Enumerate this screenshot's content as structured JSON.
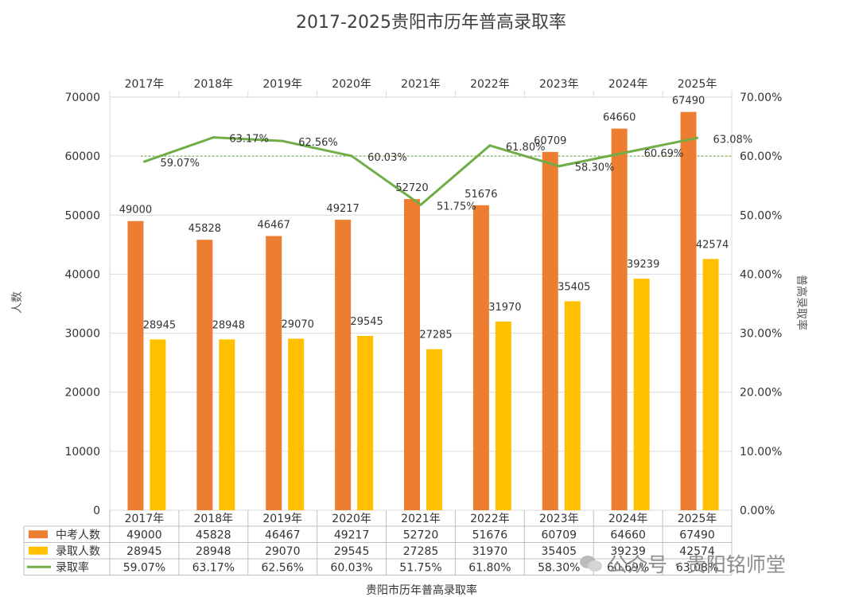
{
  "chart_data": {
    "type": "bar",
    "title": "2017-2025贵阳市历年普高录取率",
    "xlabel": "贵阳市历年普高录取率",
    "ylabel_left": "人数",
    "ylabel_right": "普高录取率",
    "categories": [
      "2017年",
      "2018年",
      "2019年",
      "2020年",
      "2021年",
      "2022年",
      "2023年",
      "2024年",
      "2025年"
    ],
    "ylim_left": [
      0,
      70000
    ],
    "yticks_left": [
      "0",
      "10000",
      "20000",
      "30000",
      "40000",
      "50000",
      "60000",
      "70000"
    ],
    "ylim_right": [
      0,
      0.7
    ],
    "yticks_right": [
      "0.00%",
      "10.00%",
      "20.00%",
      "30.00%",
      "40.00%",
      "50.00%",
      "60.00%",
      "70.00%"
    ],
    "reference_line_right": 0.6,
    "series": [
      {
        "name": "中考人数",
        "kind": "bar",
        "axis": "left",
        "color": "#ed7d31",
        "values": [
          49000,
          45828,
          46467,
          49217,
          52720,
          51676,
          60709,
          64660,
          67490
        ],
        "labels": [
          "49000",
          "45828",
          "46467",
          "49217",
          "52720",
          "51676",
          "60709",
          "64660",
          "67490"
        ]
      },
      {
        "name": "录取人数",
        "kind": "bar",
        "axis": "left",
        "color": "#ffc000",
        "values": [
          28945,
          28948,
          29070,
          29545,
          27285,
          31970,
          35405,
          39239,
          42574
        ],
        "labels": [
          "28945",
          "28948",
          "29070",
          "29545",
          "27285",
          "31970",
          "35405",
          "39239",
          "42574"
        ]
      },
      {
        "name": "录取率",
        "kind": "line",
        "axis": "right",
        "color": "#70ad47",
        "values": [
          0.5907,
          0.6317,
          0.6256,
          0.6003,
          0.5175,
          0.618,
          0.583,
          0.6069,
          0.6308
        ],
        "labels": [
          "59.07%",
          "63.17%",
          "62.56%",
          "60.03%",
          "51.75%",
          "61.80%",
          "58.30%",
          "60.69%",
          "63.08%"
        ]
      }
    ],
    "grid": true,
    "legend": "data-table-bottom"
  },
  "watermark": {
    "text": "公众号 · 贵阳铭师堂",
    "icon": "wechat-icon"
  }
}
